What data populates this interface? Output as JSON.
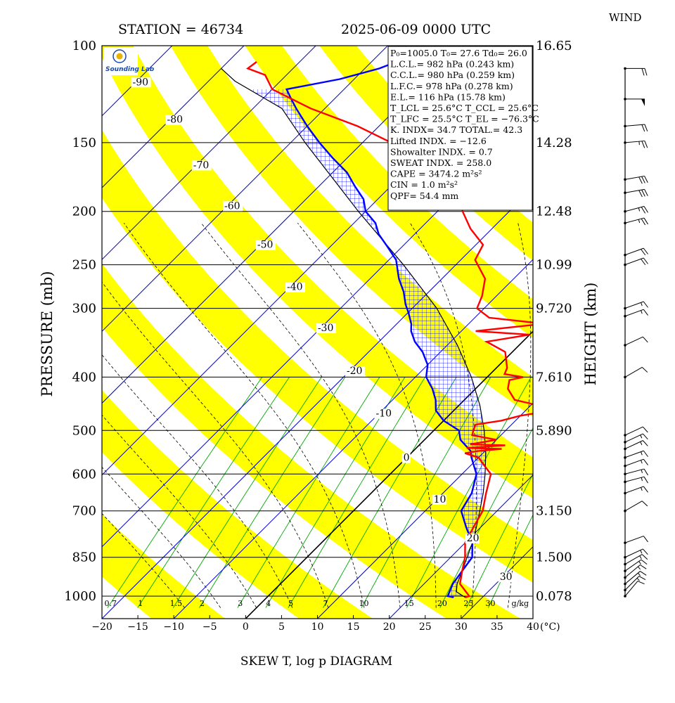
{
  "header": {
    "station": "STATION = 46734",
    "datetime": "2025-06-09 0000 UTC",
    "wind_title": "WIND",
    "footer": "SKEW T, log p DIAGRAM",
    "ylabel_left": "PRESSURE (mb)",
    "ylabel_right": "HEIGHT (km)",
    "xunit": "(°C)"
  },
  "colors": {
    "temperature": "#ff0000",
    "dewpoint_parcel": "#0000ff",
    "isotherm": "#0000cc",
    "dry_adiabat_band": "#ffff00",
    "moist_adiabat": "#000000",
    "mixing_ratio": "#00aa00"
  },
  "logo": {
    "name": "sounding-lab-logo-icon",
    "text": "Sounding Lab"
  },
  "indices": [
    {
      "id": "po",
      "text": "P₀=1005.0 T₀= 27.6 Td₀= 26.0"
    },
    {
      "id": "lcl",
      "text": "L.C.L.= 982 hPa (0.243 km)"
    },
    {
      "id": "ccl",
      "text": "C.C.L.= 980 hPa (0.259 km)"
    },
    {
      "id": "lfc",
      "text": "L.F.C.= 978 hPa (0.278 km)"
    },
    {
      "id": "el",
      "text": "E.L.= 116 hPa (15.78 km)"
    },
    {
      "id": "tlcl",
      "text": "T_LCL = 25.6°C  T_CCL = 25.6°C"
    },
    {
      "id": "tlfc",
      "text": "T_LFC = 25.5°C  T_EL = −76.3°C"
    },
    {
      "id": "kidx",
      "text": "K. INDX= 34.7  TOTAL.= 42.3"
    },
    {
      "id": "lifted",
      "text": "Lifted INDX. = −12.6"
    },
    {
      "id": "showalter",
      "text": "Showalter INDX. =    0.7"
    },
    {
      "id": "sweat",
      "text": "SWEAT INDX. =  258.0"
    },
    {
      "id": "cape",
      "text": "CAPE = 3474.2 m²s²"
    },
    {
      "id": "cin",
      "text": "CIN   =    1.0 m²s²"
    },
    {
      "id": "qpf",
      "text": "QPF= 54.4 mm"
    }
  ],
  "chart_data": {
    "type": "skew-t log-p",
    "title": "SKEW T, log p DIAGRAM",
    "xlabel": "(°C)",
    "ylabel": "PRESSURE (mb)",
    "y2label": "HEIGHT (km)",
    "xlim": [
      -20,
      40
    ],
    "ylim": [
      1050,
      100
    ],
    "x_ticks": [
      -20,
      -15,
      -10,
      -5,
      0,
      5,
      10,
      15,
      20,
      25,
      30,
      35,
      40
    ],
    "x_tick_labels": [
      "−20",
      "−15",
      "−10",
      "−5",
      "0",
      "5",
      "10",
      "15",
      "20",
      "25",
      "30",
      "35",
      "40"
    ],
    "pressure_levels": [
      100,
      150,
      200,
      250,
      300,
      400,
      500,
      600,
      700,
      850,
      1000
    ],
    "pressure_labels": [
      "100",
      "150",
      "200",
      "250",
      "300",
      "400",
      "500",
      "600",
      "700",
      "850",
      "1000"
    ],
    "height_labels": [
      "16.65",
      "14.28",
      "12.48",
      "10.99",
      "9.720",
      "7.610",
      "5.890",
      "3.150",
      "1.500",
      "0.078"
    ],
    "height_levels_p": [
      100,
      150,
      200,
      250,
      300,
      400,
      500,
      700,
      850,
      1000
    ],
    "isotherm_labels": [
      {
        "t": -90,
        "p": 118,
        "text": "-90"
      },
      {
        "t": -80,
        "p": 138,
        "text": "-80"
      },
      {
        "t": -70,
        "p": 167,
        "text": "-70"
      },
      {
        "t": -60,
        "p": 198,
        "text": "-60"
      },
      {
        "t": -50,
        "p": 233,
        "text": "-50"
      },
      {
        "t": -40,
        "p": 278,
        "text": "-40"
      },
      {
        "t": -30,
        "p": 330,
        "text": "-30"
      },
      {
        "t": -20,
        "p": 395,
        "text": "-20"
      },
      {
        "t": -10,
        "p": 472,
        "text": "-10"
      },
      {
        "t": 0,
        "p": 568,
        "text": "0"
      },
      {
        "t": 10,
        "p": 676,
        "text": "10"
      },
      {
        "t": 20,
        "p": 795,
        "text": "20"
      },
      {
        "t": 30,
        "p": 935,
        "text": "30"
      }
    ],
    "mixing_ratio_labels": [
      {
        "w": 0.7,
        "text": "0.7"
      },
      {
        "w": 1,
        "text": "1"
      },
      {
        "w": 1.5,
        "text": "1.5"
      },
      {
        "w": 2,
        "text": "2"
      },
      {
        "w": 3,
        "text": "3"
      },
      {
        "w": 4,
        "text": "4"
      },
      {
        "w": 5,
        "text": "5"
      },
      {
        "w": 7,
        "text": "7"
      },
      {
        "w": 10,
        "text": "10"
      },
      {
        "w": 15,
        "text": "15"
      },
      {
        "w": 20,
        "text": "20"
      },
      {
        "w": 25,
        "text": "25"
      },
      {
        "w": 30,
        "text": "30"
      }
    ],
    "mixing_ratio_unit": "g/kg",
    "temperature": {
      "name": "Temperature",
      "points": [
        [
          1005,
          27.6
        ],
        [
          1000,
          28.0
        ],
        [
          950,
          25.0
        ],
        [
          900,
          23.5
        ],
        [
          850,
          22.0
        ],
        [
          800,
          20.0
        ],
        [
          750,
          19.0
        ],
        [
          700,
          18.0
        ],
        [
          650,
          16.0
        ],
        [
          600,
          14.0
        ],
        [
          580,
          12.0
        ],
        [
          560,
          10.0
        ],
        [
          550,
          7.5
        ],
        [
          545,
          9.0
        ],
        [
          540,
          12.0
        ],
        [
          538,
          7.0
        ],
        [
          532,
          12.0
        ],
        [
          530,
          7.0
        ],
        [
          520,
          10.0
        ],
        [
          510,
          6.0
        ],
        [
          500,
          5.5
        ],
        [
          488,
          5.0
        ],
        [
          480,
          8.0
        ],
        [
          470,
          10.0
        ],
        [
          462,
          13.0
        ],
        [
          455,
          12.0
        ],
        [
          450,
          11.0
        ],
        [
          440,
          7.0
        ],
        [
          420,
          4.5
        ],
        [
          405,
          3.5
        ],
        [
          400,
          5.0
        ],
        [
          395,
          2.0
        ],
        [
          385,
          1.5
        ],
        [
          360,
          -1.0
        ],
        [
          345,
          -5.0
        ],
        [
          335,
          0.0
        ],
        [
          330,
          -8.0
        ],
        [
          320,
          0.5
        ],
        [
          312,
          -8.0
        ],
        [
          300,
          -11.0
        ],
        [
          285,
          -12.0
        ],
        [
          265,
          -14.0
        ],
        [
          245,
          -18.0
        ],
        [
          230,
          -19.0
        ],
        [
          215,
          -23.0
        ],
        [
          200,
          -26.5
        ],
        [
          190,
          -28.5
        ],
        [
          178,
          -32.0
        ],
        [
          165,
          -37.0
        ],
        [
          150,
          -46.0
        ],
        [
          140,
          -53.0
        ],
        [
          130,
          -62.0
        ],
        [
          120,
          -70.0
        ],
        [
          113,
          -73.0
        ],
        [
          110,
          -76.3
        ],
        [
          107,
          -76.0
        ]
      ]
    },
    "dewpoint": {
      "name": "Dewpoint",
      "points": [
        [
          1005,
          26.0
        ],
        [
          1000,
          25.0
        ],
        [
          950,
          24.0
        ],
        [
          900,
          23.5
        ],
        [
          850,
          23.0
        ],
        [
          800,
          21.0
        ],
        [
          750,
          18.0
        ],
        [
          700,
          15.0
        ],
        [
          650,
          14.0
        ],
        [
          600,
          12.0
        ],
        [
          560,
          9.0
        ],
        [
          545,
          8.0
        ],
        [
          520,
          5.0
        ],
        [
          500,
          3.5
        ],
        [
          480,
          0.0
        ],
        [
          460,
          -2.5
        ],
        [
          440,
          -4.0
        ],
        [
          420,
          -6.0
        ],
        [
          400,
          -8.5
        ],
        [
          380,
          -10.0
        ],
        [
          360,
          -12.5
        ],
        [
          345,
          -15.0
        ],
        [
          330,
          -17.0
        ],
        [
          320,
          -18.0
        ],
        [
          305,
          -20.0
        ],
        [
          295,
          -21.5
        ],
        [
          280,
          -23.5
        ],
        [
          265,
          -26.0
        ],
        [
          245,
          -29.0
        ],
        [
          232,
          -32.0
        ],
        [
          220,
          -35.0
        ],
        [
          210,
          -37.0
        ],
        [
          200,
          -40.0
        ],
        [
          190,
          -42.0
        ],
        [
          180,
          -45.0
        ],
        [
          170,
          -48.0
        ],
        [
          160,
          -52.0
        ],
        [
          150,
          -56.0
        ],
        [
          140,
          -60.0
        ],
        [
          130,
          -64.0
        ],
        [
          125,
          -66.0
        ],
        [
          120,
          -68.0
        ],
        [
          115,
          -62.0
        ],
        [
          110,
          -58.0
        ],
        [
          106,
          -56.0
        ]
      ]
    },
    "parcel": {
      "name": "Parcel",
      "points": [
        [
          1005,
          27.6
        ],
        [
          982,
          25.6
        ],
        [
          950,
          24.6
        ],
        [
          900,
          23.5
        ],
        [
          850,
          22.3
        ],
        [
          800,
          21.0
        ],
        [
          750,
          19.4
        ],
        [
          700,
          17.6
        ],
        [
          650,
          15.6
        ],
        [
          600,
          13.2
        ],
        [
          550,
          10.4
        ],
        [
          500,
          7.0
        ],
        [
          450,
          2.9
        ],
        [
          400,
          -2.2
        ],
        [
          350,
          -8.6
        ],
        [
          300,
          -16.6
        ],
        [
          250,
          -27.3
        ],
        [
          200,
          -41.0
        ],
        [
          150,
          -58.0
        ],
        [
          130,
          -66.0
        ],
        [
          116,
          -76.3
        ],
        [
          110,
          -80.0
        ]
      ]
    },
    "winds": [
      {
        "p": 1000,
        "dir": 220,
        "spd": 10
      },
      {
        "p": 975,
        "dir": 225,
        "spd": 15
      },
      {
        "p": 950,
        "dir": 230,
        "spd": 15
      },
      {
        "p": 925,
        "dir": 230,
        "spd": 15
      },
      {
        "p": 900,
        "dir": 235,
        "spd": 15
      },
      {
        "p": 875,
        "dir": 240,
        "spd": 15
      },
      {
        "p": 850,
        "dir": 245,
        "spd": 15
      },
      {
        "p": 800,
        "dir": 250,
        "spd": 10
      },
      {
        "p": 700,
        "dir": 240,
        "spd": 10
      },
      {
        "p": 650,
        "dir": 250,
        "spd": 15
      },
      {
        "p": 620,
        "dir": 255,
        "spd": 15
      },
      {
        "p": 600,
        "dir": 255,
        "spd": 15
      },
      {
        "p": 580,
        "dir": 250,
        "spd": 15
      },
      {
        "p": 560,
        "dir": 250,
        "spd": 15
      },
      {
        "p": 540,
        "dir": 245,
        "spd": 15
      },
      {
        "p": 525,
        "dir": 245,
        "spd": 15
      },
      {
        "p": 510,
        "dir": 245,
        "spd": 10
      },
      {
        "p": 400,
        "dir": 240,
        "spd": 10
      },
      {
        "p": 350,
        "dir": 245,
        "spd": 10
      },
      {
        "p": 310,
        "dir": 250,
        "spd": 15
      },
      {
        "p": 300,
        "dir": 250,
        "spd": 15
      },
      {
        "p": 250,
        "dir": 250,
        "spd": 20
      },
      {
        "p": 240,
        "dir": 250,
        "spd": 20
      },
      {
        "p": 210,
        "dir": 255,
        "spd": 25
      },
      {
        "p": 200,
        "dir": 255,
        "spd": 25
      },
      {
        "p": 185,
        "dir": 260,
        "spd": 30
      },
      {
        "p": 175,
        "dir": 260,
        "spd": 30
      },
      {
        "p": 150,
        "dir": 265,
        "spd": 25
      },
      {
        "p": 140,
        "dir": 265,
        "spd": 20
      },
      {
        "p": 125,
        "dir": 270,
        "spd": 50
      },
      {
        "p": 110,
        "dir": 270,
        "spd": 20
      }
    ]
  }
}
